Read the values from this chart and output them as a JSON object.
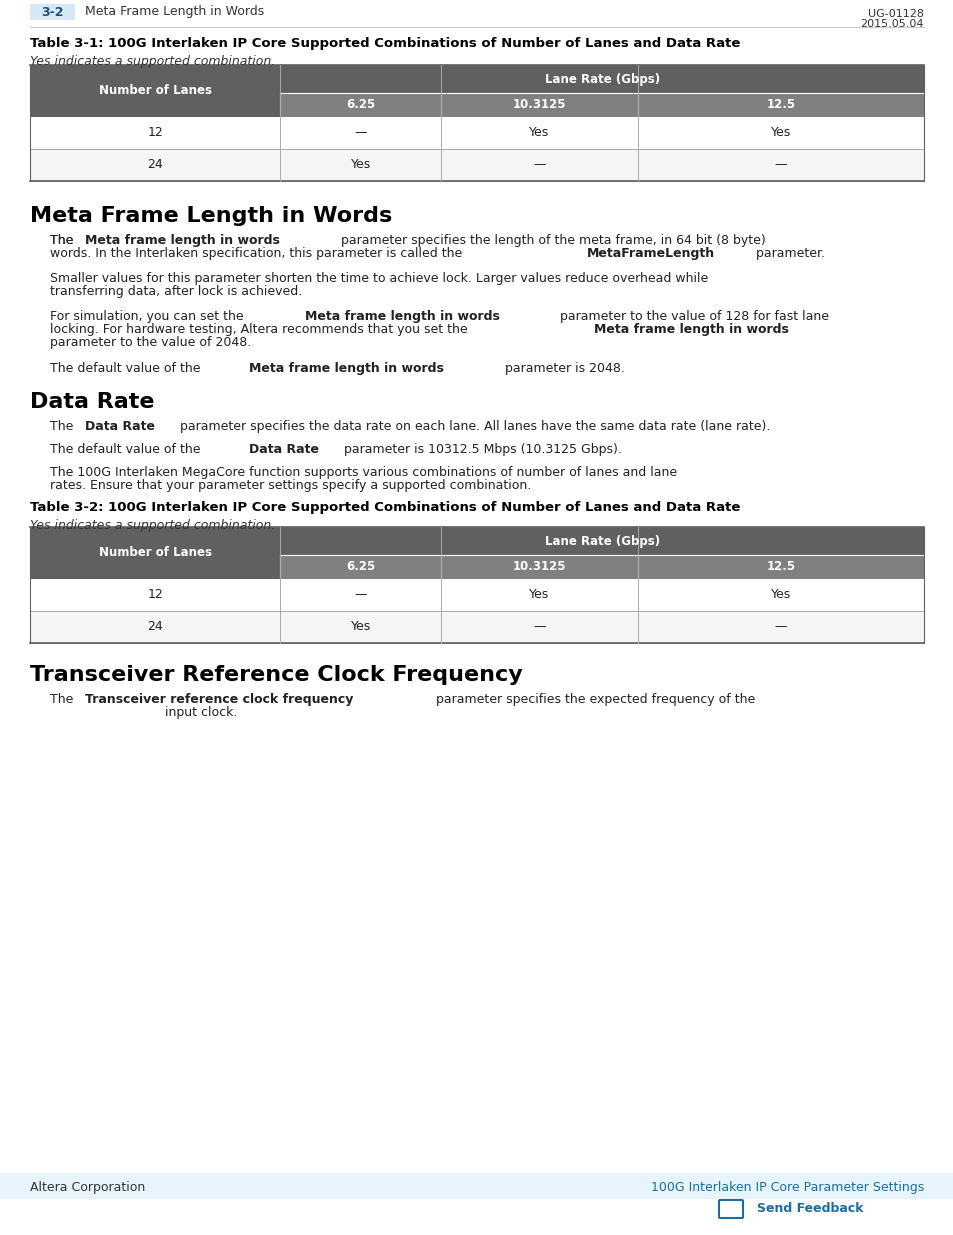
{
  "page_bg": "#ffffff",
  "header_tab_color": "#d6e8f5",
  "header_tab_text": "3-2",
  "header_section": "Meta Frame Length in Words",
  "header_right": "UG-01128\n2015.05.04",
  "table1_title": "Table 3-1: 100G Interlaken IP Core Supported Combinations of Number of Lanes and Data Rate",
  "table2_title": "Table 3-2: 100G Interlaken IP Core Supported Combinations of Number of Lanes and Data Rate",
  "table_note": "Yes indicates a supported combination.",
  "table_header_bg": "#808080",
  "table_header_text_color": "#ffffff",
  "table_subheader_bg": "#a0a0a0",
  "table_row_bg1": "#ffffff",
  "table_row_bg2": "#f0f0f0",
  "table_border_color": "#808080",
  "col_header": "Number of Lanes",
  "col_lane_rate": "Lane Rate (Gbps)",
  "col_625": "6.25",
  "col_103125": "10.3125",
  "col_125": "12.5",
  "row1_lanes": "12",
  "row1_625": "—",
  "row1_103125": "Yes",
  "row1_125": "Yes",
  "row2_lanes": "24",
  "row2_625": "Yes",
  "row2_103125": "—",
  "row2_125": "—",
  "section1_title": "Meta Frame Length in Words",
  "section1_para1": "The Meta frame length in words parameter specifies the length of the meta frame, in 64 bit (8 byte)\nwords. In the Interlaken specification, this parameter is called the MetaFrameLength parameter.",
  "section1_para1_bold1": "Meta frame length in words",
  "section1_para1_bold2": "MetaFrameLength",
  "section1_para2": "Smaller values for this parameter shorten the time to achieve lock. Larger values reduce overhead while\ntransferring data, after lock is achieved.",
  "section1_para3_pre": "For simulation, you can set the ",
  "section1_para3_bold1": "Meta frame length in words",
  "section1_para3_mid": " parameter to the value of 128 for fast lane\nlocking. For hardware testing, Altera recommends that you set the ",
  "section1_para3_bold2": "Meta frame length in words",
  "section1_para3_end": "\nparameter to the value of 2048.",
  "section1_para4_pre": "The default value of the ",
  "section1_para4_bold": "Meta frame length in words",
  "section1_para4_end": " parameter is 2048.",
  "section2_title": "Data Rate",
  "section2_para1_pre": "The ",
  "section2_para1_bold": "Data Rate",
  "section2_para1_end": " parameter specifies the data rate on each lane. All lanes have the same data rate (lane rate).",
  "section2_para2_pre": "The default value of the ",
  "section2_para2_bold": "Data Rate",
  "section2_para2_end": " parameter is 10312.5 Mbps (10.3125 Gbps).",
  "section2_para3": "The 100G Interlaken MegaCore function supports various combinations of number of lanes and lane\nrates. Ensure that your parameter settings specify a supported combination.",
  "section3_title": "Transceiver Reference Clock Frequency",
  "section3_para1_pre": "The ",
  "section3_para1_bold": "Transceiver reference clock frequency",
  "section3_para1_end": " parameter specifies the expected frequency of the\ninput clock.",
  "footer_left": "Altera Corporation",
  "footer_right": "100G Interlaken IP Core Parameter Settings",
  "footer_feedback": "Send Feedback",
  "footer_bg": "#e8f4fb",
  "footer_text_color": "#1a6fa0",
  "title_color": "#000000",
  "body_text_color": "#222222",
  "bold_text_color": "#000000"
}
